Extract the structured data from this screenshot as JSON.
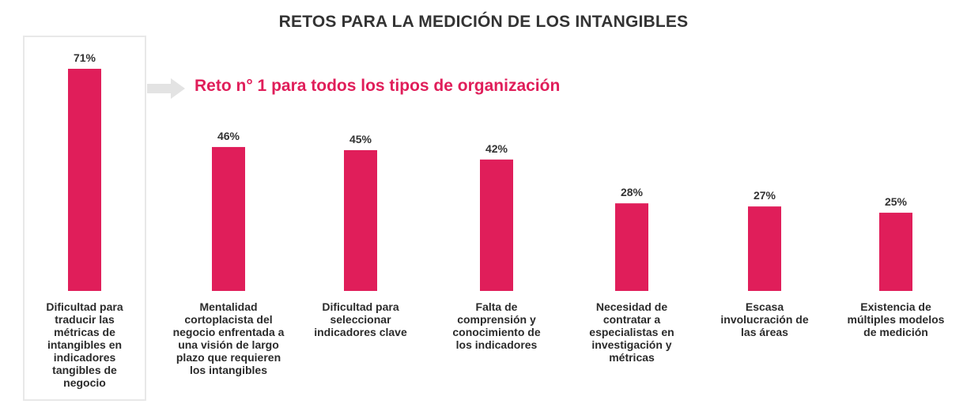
{
  "header": {
    "title": "RETOS PARA LA MEDICIÓN DE LOS INTANGIBLES",
    "callout": "Reto n° 1 para todos los tipos de organización"
  },
  "colors": {
    "bar": "#e01e5a",
    "accent_text": "#e01e5a",
    "arrow": "#e3e3e3",
    "highlight_border": "#e8e8e8"
  },
  "chart_data": {
    "type": "bar",
    "title": "RETOS PARA LA MEDICIÓN DE LOS INTANGIBLES",
    "xlabel": "",
    "ylabel": "",
    "grid": false,
    "ylim": [
      0,
      71
    ],
    "unit": "%",
    "categories": [
      "Dificultad para traducir las métricas de intangibles en indicadores tangibles de negocio",
      "Mentalidad cortoplacista del negocio enfrentada a una visión de largo plazo que requieren los intangibles",
      "Dificultad para seleccionar indicadores clave",
      "Falta de comprensión y conocimiento de los indicadores",
      "Necesidad de contratar a especialistas en investigación y métricas",
      "Escasa involucración de las áreas",
      "Existencia de múltiples modelos de medición"
    ],
    "values": [
      71,
      46,
      45,
      42,
      28,
      27,
      25
    ],
    "data_labels": [
      "71%",
      "46%",
      "45%",
      "42%",
      "28%",
      "27%",
      "25%"
    ]
  }
}
